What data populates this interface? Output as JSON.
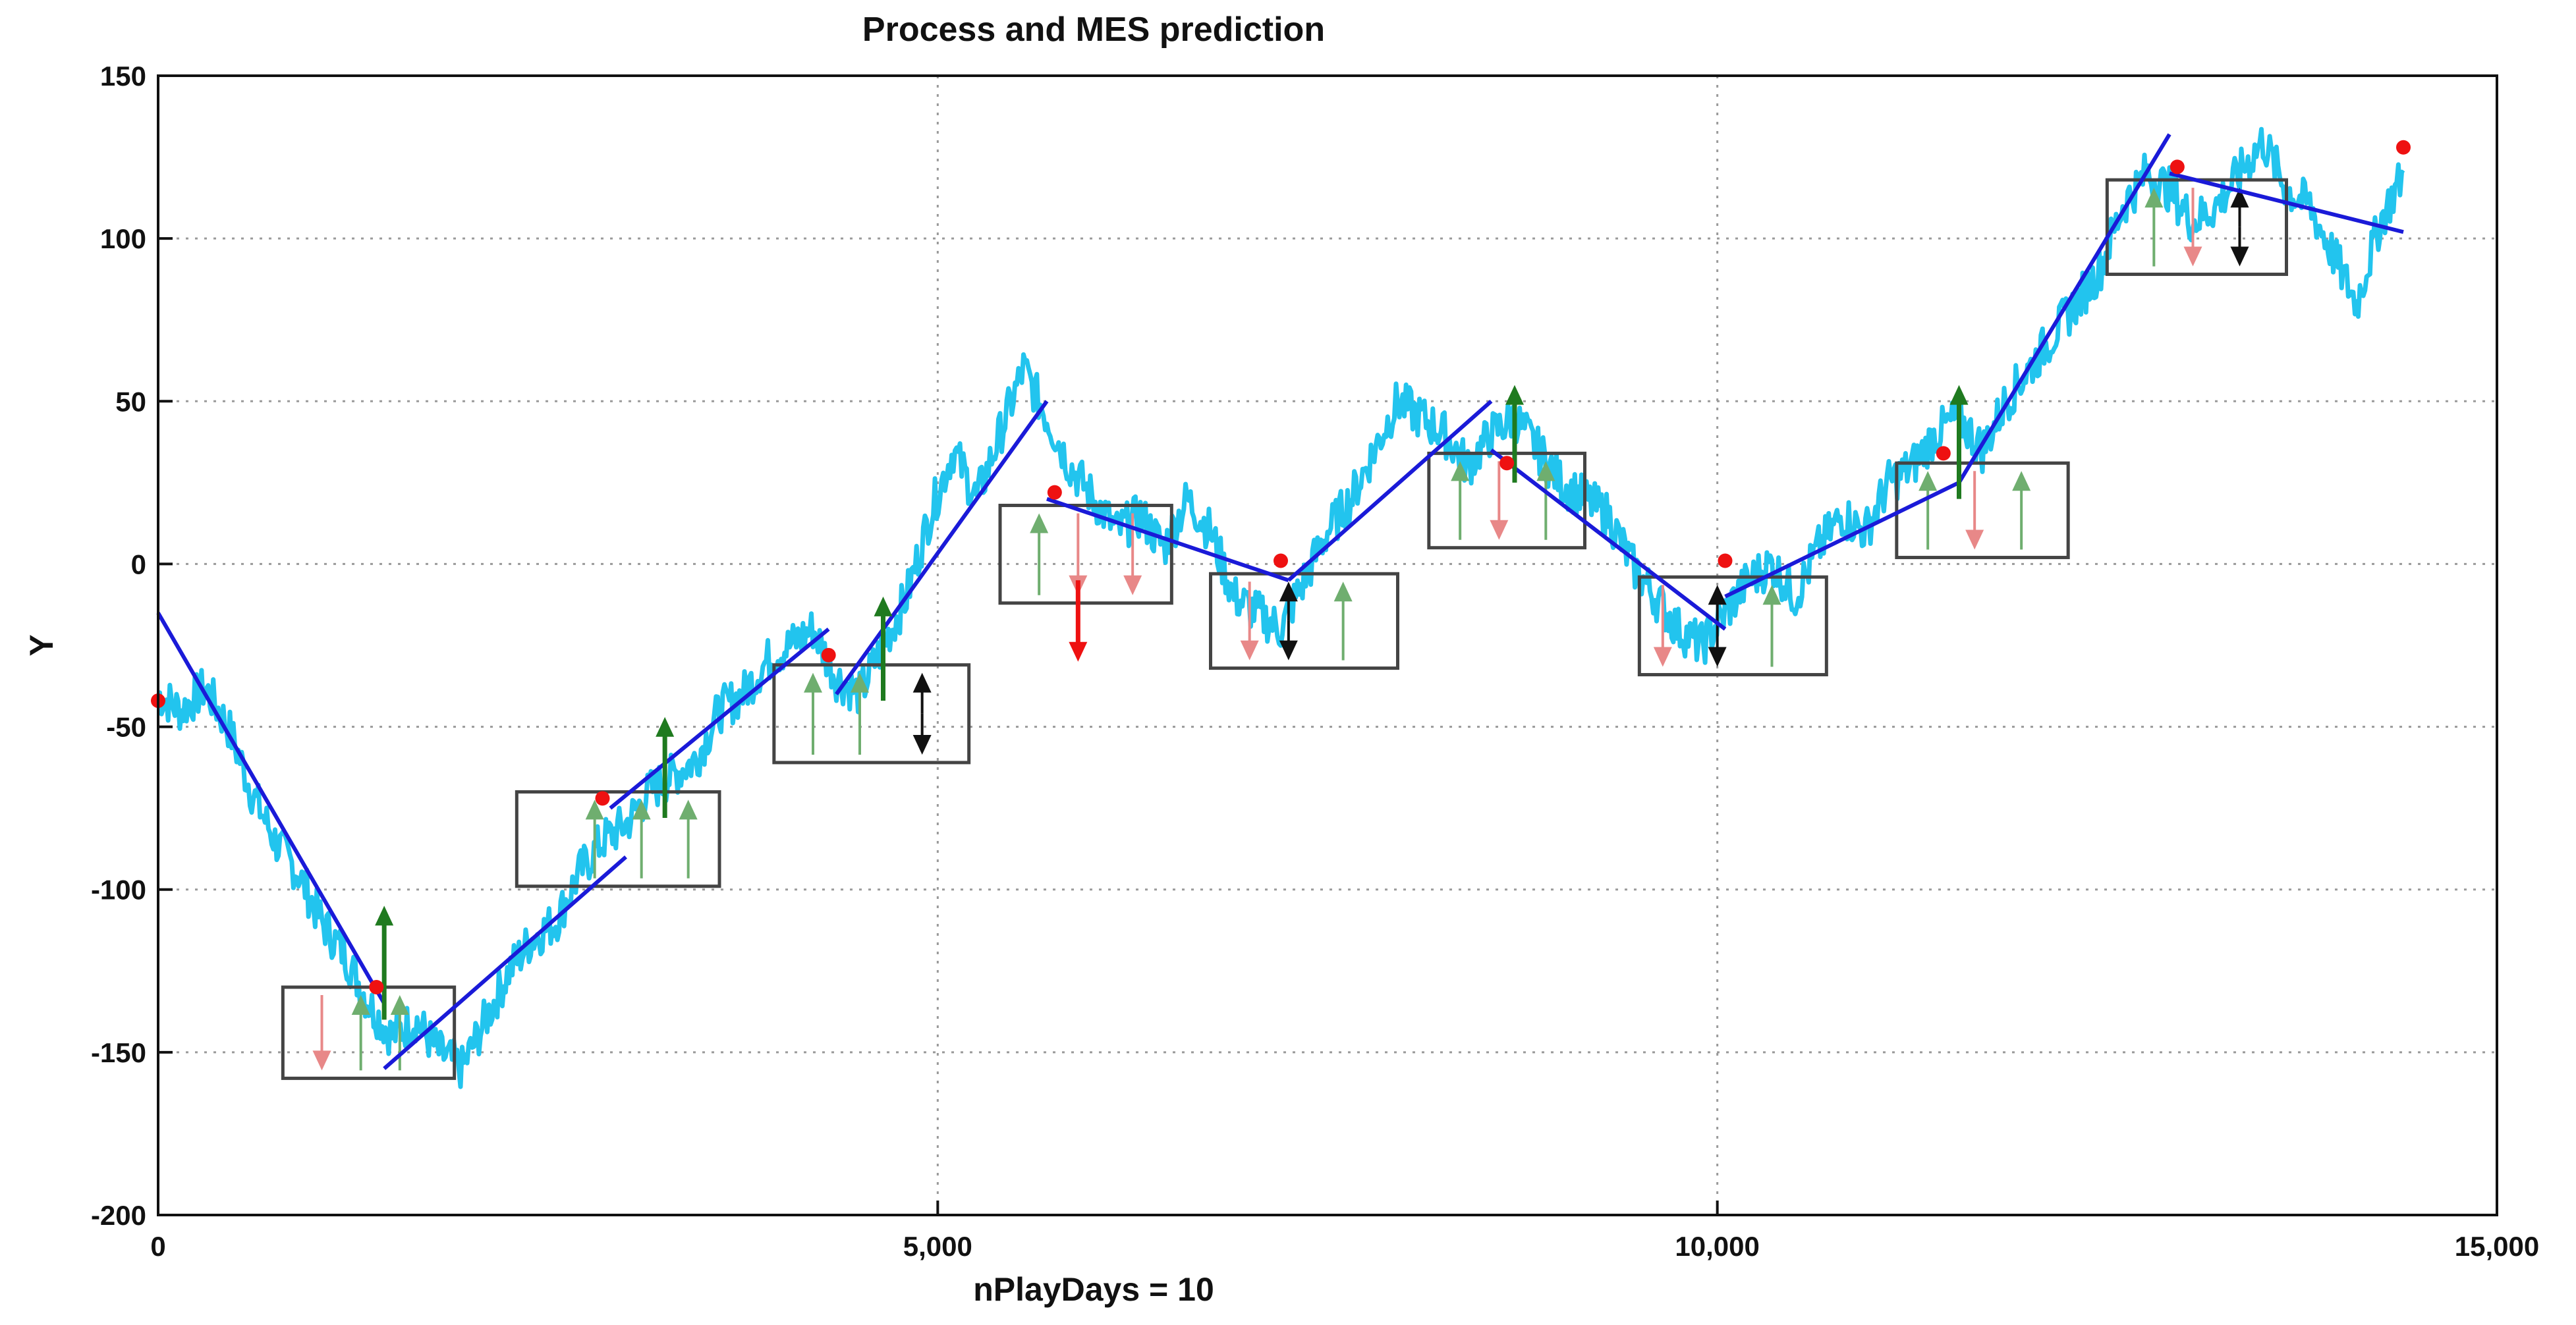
{
  "chart_data": {
    "type": "line",
    "title": "Process and MES prediction",
    "xlabel": "nPlayDays = 10",
    "ylabel": "Y",
    "xlim": [
      0,
      15000
    ],
    "ylim": [
      -200,
      150
    ],
    "grid": true,
    "x_ticks": [
      0,
      5000,
      10000,
      15000
    ],
    "x_tick_labels": [
      "0",
      "5,000",
      "10,000",
      "15,000"
    ],
    "y_ticks": [
      -200,
      -150,
      -100,
      -50,
      0,
      50,
      100,
      150
    ],
    "y_tick_labels": [
      "-200",
      "-150",
      "-100",
      "-50",
      "0",
      "50",
      "100",
      "150"
    ],
    "colors": {
      "process": "#22c4ee",
      "trend": "#1a1ad8",
      "marker": "#ee1111",
      "arrow_up": "#1f7a1f",
      "arrow_up_light": "#6fae6f",
      "arrow_down": "#ee1111",
      "arrow_down_light": "#e88888",
      "arrow_neutral": "#111111",
      "box": "#444444"
    },
    "series": [
      {
        "role": "process",
        "x": [
          0,
          150,
          300,
          450,
          600,
          750,
          900,
          1050,
          1200,
          1350,
          1500,
          1650,
          1800,
          1950,
          2100,
          2250,
          2400,
          2550,
          2700,
          2850,
          3000,
          3150,
          3300,
          3450,
          3600,
          3750,
          3900,
          4050,
          4200,
          4350,
          4500,
          4650,
          4800,
          4950,
          5100,
          5250,
          5400,
          5550,
          5700,
          5850,
          6000,
          6150,
          6300,
          6450,
          6600,
          6750,
          6900,
          7050,
          7200,
          7350,
          7500,
          7650,
          7800,
          7950,
          8100,
          8250,
          8400,
          8550,
          8700,
          8850,
          9000,
          9150,
          9300,
          9450,
          9600,
          9750,
          9900,
          10050,
          10200,
          10350,
          10500,
          10650,
          10800,
          10950,
          11100,
          11250,
          11400,
          11550,
          11700,
          11850,
          12000,
          12150,
          12300,
          12450,
          12600,
          12750,
          12900,
          13050,
          13200,
          13350,
          13500,
          13650,
          13800,
          13950,
          14100,
          14250,
          14400
        ],
        "y": [
          -40,
          -45,
          -38,
          -50,
          -70,
          -85,
          -95,
          -110,
          -120,
          -135,
          -145,
          -140,
          -150,
          -155,
          -140,
          -125,
          -115,
          -110,
          -95,
          -85,
          -80,
          -70,
          -65,
          -60,
          -45,
          -40,
          -30,
          -25,
          -20,
          -35,
          -40,
          -25,
          -10,
          15,
          35,
          20,
          40,
          60,
          45,
          30,
          20,
          10,
          15,
          5,
          20,
          10,
          -10,
          -15,
          -20,
          -5,
          10,
          20,
          35,
          50,
          45,
          40,
          30,
          40,
          45,
          35,
          25,
          20,
          15,
          0,
          -10,
          -20,
          -25,
          -15,
          -5,
          0,
          -10,
          5,
          15,
          10,
          25,
          30,
          40,
          45,
          35,
          50,
          60,
          70,
          80,
          90,
          110,
          120,
          115,
          105,
          110,
          120,
          130,
          115,
          110,
          95,
          80,
          105,
          120
        ]
      }
    ],
    "trend_segments": [
      {
        "x": [
          0,
          1450
        ],
        "y": [
          -15,
          -135
        ]
      },
      {
        "x": [
          1450,
          3000
        ],
        "y": [
          -155,
          -90
        ]
      },
      {
        "x": [
          2900,
          4300
        ],
        "y": [
          -75,
          -20
        ]
      },
      {
        "x": [
          4350,
          5700
        ],
        "y": [
          -40,
          50
        ]
      },
      {
        "x": [
          5700,
          7250
        ],
        "y": [
          20,
          -5
        ]
      },
      {
        "x": [
          7250,
          8550
        ],
        "y": [
          -5,
          50
        ]
      },
      {
        "x": [
          8550,
          10050
        ],
        "y": [
          35,
          -20
        ]
      },
      {
        "x": [
          10050,
          11550
        ],
        "y": [
          -10,
          25
        ]
      },
      {
        "x": [
          11550,
          12900
        ],
        "y": [
          25,
          132
        ]
      },
      {
        "x": [
          12900,
          14400
        ],
        "y": [
          120,
          102
        ]
      }
    ],
    "prediction_markers": {
      "x": [
        0,
        1400,
        2850,
        4300,
        5750,
        7200,
        8650,
        10050,
        11450,
        12950,
        14400
      ],
      "y": [
        -42,
        -130,
        -72,
        -28,
        22,
        1,
        31,
        1,
        34,
        122,
        128
      ]
    },
    "boxes": [
      {
        "x": [
          800,
          1900
        ],
        "y": [
          -158,
          -130
        ],
        "arrows": [
          {
            "x": 1050,
            "dir": "down",
            "style": "light"
          },
          {
            "x": 1300,
            "dir": "up",
            "style": "light"
          },
          {
            "x": 1550,
            "dir": "up",
            "style": "light"
          }
        ]
      },
      {
        "x": [
          2300,
          3600
        ],
        "y": [
          -99,
          -70
        ],
        "arrows": [
          {
            "x": 2800,
            "dir": "up",
            "style": "light"
          },
          {
            "x": 3100,
            "dir": "up",
            "style": "light"
          },
          {
            "x": 3400,
            "dir": "up",
            "style": "light"
          }
        ]
      },
      {
        "x": [
          3950,
          5200
        ],
        "y": [
          -61,
          -31
        ],
        "arrows": [
          {
            "x": 4200,
            "dir": "up",
            "style": "light"
          },
          {
            "x": 4500,
            "dir": "up",
            "style": "light"
          },
          {
            "x": 4900,
            "dir": "both",
            "style": "dark"
          }
        ]
      },
      {
        "x": [
          5400,
          6500
        ],
        "y": [
          -12,
          18
        ],
        "arrows": [
          {
            "x": 5650,
            "dir": "up",
            "style": "light"
          },
          {
            "x": 5900,
            "dir": "down",
            "style": "light"
          },
          {
            "x": 6250,
            "dir": "down",
            "style": "light"
          }
        ]
      },
      {
        "x": [
          6750,
          7950
        ],
        "y": [
          -32,
          -3
        ],
        "arrows": [
          {
            "x": 7000,
            "dir": "down",
            "style": "light"
          },
          {
            "x": 7250,
            "dir": "both",
            "style": "dark"
          },
          {
            "x": 7600,
            "dir": "up",
            "style": "light"
          }
        ]
      },
      {
        "x": [
          8150,
          9150
        ],
        "y": [
          5,
          34
        ],
        "arrows": [
          {
            "x": 8350,
            "dir": "up",
            "style": "light"
          },
          {
            "x": 8600,
            "dir": "down",
            "style": "light"
          },
          {
            "x": 8900,
            "dir": "up",
            "style": "light"
          }
        ]
      },
      {
        "x": [
          9500,
          10700
        ],
        "y": [
          -34,
          -4
        ],
        "arrows": [
          {
            "x": 9650,
            "dir": "down",
            "style": "light"
          },
          {
            "x": 10000,
            "dir": "both",
            "style": "dark"
          },
          {
            "x": 10350,
            "dir": "up",
            "style": "light"
          }
        ]
      },
      {
        "x": [
          11150,
          12250
        ],
        "y": [
          2,
          31
        ],
        "arrows": [
          {
            "x": 11350,
            "dir": "up",
            "style": "light"
          },
          {
            "x": 11650,
            "dir": "down",
            "style": "light"
          },
          {
            "x": 11950,
            "dir": "up",
            "style": "light"
          }
        ]
      },
      {
        "x": [
          12500,
          13650
        ],
        "y": [
          89,
          118
        ],
        "arrows": [
          {
            "x": 12800,
            "dir": "up",
            "style": "light"
          },
          {
            "x": 13050,
            "dir": "down",
            "style": "light"
          },
          {
            "x": 13350,
            "dir": "both",
            "style": "dark"
          }
        ]
      }
    ],
    "signal_arrows": [
      {
        "x": 1450,
        "y0": -140,
        "y1": -105,
        "dir": "up"
      },
      {
        "x": 3250,
        "y0": -78,
        "y1": -47,
        "dir": "up"
      },
      {
        "x": 4650,
        "y0": -42,
        "y1": -10,
        "dir": "up"
      },
      {
        "x": 5900,
        "y0": -5,
        "y1": -30,
        "dir": "down"
      },
      {
        "x": 8700,
        "y0": 25,
        "y1": 55,
        "dir": "up"
      },
      {
        "x": 11550,
        "y0": 20,
        "y1": 55,
        "dir": "up"
      }
    ]
  }
}
